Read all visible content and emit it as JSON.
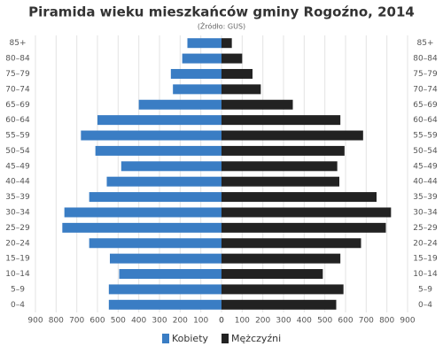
{
  "chart_data": {
    "type": "pyramid",
    "title": "Piramida wieku mieszkańców gminy Rogoźno, 2014",
    "subtitle": "(Źródło: GUS)",
    "categories": [
      "85+",
      "80–84",
      "75–79",
      "70–74",
      "65–69",
      "60–64",
      "55–59",
      "50–54",
      "45–49",
      "40–44",
      "35–39",
      "30–34",
      "25–29",
      "20–24",
      "15–19",
      "10–14",
      "5–9",
      "0–4"
    ],
    "series": [
      {
        "name": "Kobiety",
        "color": "#3a7dc4",
        "values": [
          165,
          190,
          245,
          235,
          400,
          600,
          680,
          610,
          485,
          555,
          640,
          760,
          770,
          640,
          540,
          495,
          545,
          545
        ]
      },
      {
        "name": "Mężczyźni",
        "color": "#222222",
        "values": [
          50,
          100,
          150,
          190,
          345,
          575,
          685,
          595,
          560,
          570,
          750,
          820,
          795,
          675,
          575,
          490,
          590,
          555
        ]
      }
    ],
    "xlim": [
      0,
      900
    ],
    "xticks": [
      0,
      100,
      200,
      300,
      400,
      500,
      600,
      700,
      800,
      900
    ],
    "grid": true
  }
}
